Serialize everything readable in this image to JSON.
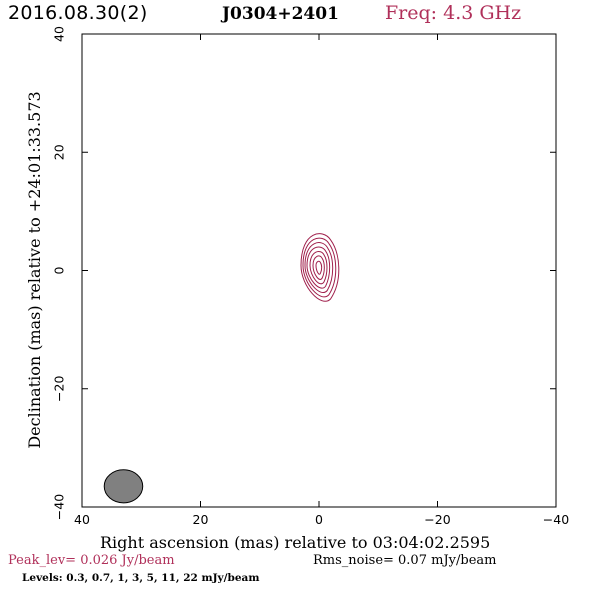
{
  "header": {
    "date": "2016.08.30(2)",
    "source": "J0304+2401",
    "freq": "Freq: 4.3 GHz"
  },
  "colors": {
    "contour": "#a0204c",
    "accent_text": "#b0305a",
    "beam_fill": "#808080"
  },
  "chart_data": {
    "type": "contour",
    "xlabel": "Right ascension (mas) relative to 03:04:02.2595",
    "ylabel": "Declination (mas) relative to +24:01:33.573",
    "xlim": [
      40,
      -40
    ],
    "ylim": [
      -40,
      40
    ],
    "x_ticks": [
      "40",
      "20",
      "0",
      "−20",
      "−40"
    ],
    "y_ticks": [
      "40",
      "20",
      "0",
      "−20",
      "−40"
    ],
    "x_tick_values": [
      40,
      20,
      0,
      -20,
      -40
    ],
    "y_tick_values": [
      40,
      20,
      0,
      -20,
      -40
    ],
    "peak": "Peak_lev=  0.026 Jy/beam",
    "rms": "Rms_noise= 0.07 mJy/beam",
    "levels_text": "Levels: 0.3, 0.7,    1,    3,    5,   11,   22 mJy/beam",
    "levels_mjy": [
      0.3,
      0.7,
      1,
      3,
      5,
      11,
      22
    ],
    "component": {
      "ra": 0,
      "dec": 0.5
    },
    "beam": {
      "ra": 33,
      "dec": -36.5,
      "ra_halfwidth": 1.3,
      "dec_halfheight": 2.8
    }
  }
}
